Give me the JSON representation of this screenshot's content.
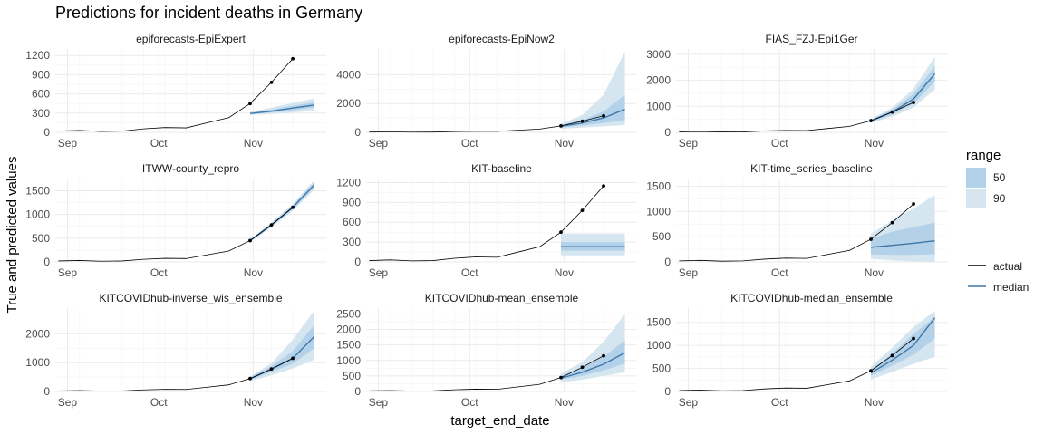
{
  "title": "Predictions for incident deaths in Germany",
  "xlabel": "target_end_date",
  "ylabel": "True and predicted values",
  "legend": {
    "range_title": "range",
    "range_items": [
      "50",
      "90"
    ],
    "line_items": [
      "actual",
      "median"
    ]
  },
  "colors": {
    "actual": "#000000",
    "median": "#3f77a8",
    "band50": "#b3d1e8",
    "band90": "#d6e6f1",
    "grid": "#ebebeb"
  },
  "chart_data": {
    "type": "line",
    "x_dates": [
      "2020-09-05",
      "2020-09-12",
      "2020-09-19",
      "2020-09-26",
      "2020-10-03",
      "2020-10-10",
      "2020-10-17",
      "2020-10-24",
      "2020-10-31",
      "2020-11-07",
      "2020-11-14"
    ],
    "x_tick_labels": [
      "Sep",
      "Oct",
      "Nov"
    ],
    "actual": [
      20,
      30,
      15,
      20,
      55,
      75,
      70,
      150,
      230,
      450,
      780,
      1150
    ],
    "actual_dates": [
      "2020-08-29",
      "2020-09-05",
      "2020-09-12",
      "2020-09-19",
      "2020-09-26",
      "2020-10-03",
      "2020-10-10",
      "2020-10-17",
      "2020-10-24",
      "2020-10-31",
      "2020-11-07",
      "2020-11-14"
    ],
    "forecast_dates": [
      "2020-10-31",
      "2020-11-07",
      "2020-11-14",
      "2020-11-21"
    ],
    "panels": [
      {
        "name": "epiforecasts-EpiExpert",
        "yticks": [
          0,
          300,
          600,
          900,
          1200
        ],
        "ylim": [
          0,
          1260
        ],
        "median": [
          295,
          330,
          380,
          425
        ],
        "q50": [
          [
            285,
            305
          ],
          [
            310,
            355
          ],
          [
            345,
            415
          ],
          [
            385,
            470
          ]
        ],
        "q90": [
          [
            270,
            320
          ],
          [
            285,
            385
          ],
          [
            310,
            460
          ],
          [
            335,
            530
          ]
        ]
      },
      {
        "name": "epiforecasts-EpiNow2",
        "yticks": [
          0,
          2000,
          4000
        ],
        "ylim": [
          0,
          5600
        ],
        "median": [
          420,
          650,
          1000,
          1600
        ],
        "q50": [
          [
            330,
            500
          ],
          [
            470,
            850
          ],
          [
            650,
            1450
          ],
          [
            850,
            2600
          ]
        ],
        "q90": [
          [
            250,
            600
          ],
          [
            330,
            1200
          ],
          [
            420,
            2600
          ],
          [
            500,
            5600
          ]
        ]
      },
      {
        "name": "FIAS_FZJ-Epi1Ger",
        "yticks": [
          0,
          1000,
          2000,
          3000
        ],
        "ylim": [
          0,
          3100
        ],
        "median": [
          440,
          780,
          1280,
          2250
        ],
        "q50": [
          [
            400,
            480
          ],
          [
            680,
            870
          ],
          [
            1100,
            1480
          ],
          [
            1950,
            2550
          ]
        ],
        "q90": [
          [
            360,
            520
          ],
          [
            600,
            950
          ],
          [
            950,
            1680
          ],
          [
            1650,
            2900
          ]
        ]
      },
      {
        "name": "ITWW-county_repro",
        "yticks": [
          0,
          500,
          1000,
          1500
        ],
        "ylim": [
          0,
          1700
        ],
        "median": [
          450,
          780,
          1150,
          1620
        ],
        "q50": [
          [
            430,
            470
          ],
          [
            750,
            810
          ],
          [
            1110,
            1190
          ],
          [
            1560,
            1680
          ]
        ],
        "q90": [
          [
            415,
            485
          ],
          [
            730,
            830
          ],
          [
            1080,
            1220
          ],
          [
            1520,
            1720
          ]
        ]
      },
      {
        "name": "KIT-baseline",
        "yticks": [
          0,
          300,
          600,
          900,
          1200
        ],
        "ylim": [
          0,
          1220
        ],
        "median": [
          230,
          230,
          230,
          230
        ],
        "q50": [
          [
            170,
            300
          ],
          [
            170,
            300
          ],
          [
            170,
            300
          ],
          [
            170,
            300
          ]
        ],
        "q90": [
          [
            100,
            430
          ],
          [
            100,
            430
          ],
          [
            100,
            430
          ],
          [
            100,
            430
          ]
        ]
      },
      {
        "name": "KIT-time_series_baseline",
        "yticks": [
          0,
          500,
          1000,
          1500
        ],
        "ylim": [
          0,
          1600
        ],
        "median": [
          290,
          330,
          370,
          420
        ],
        "q50": [
          [
            150,
            460
          ],
          [
            140,
            600
          ],
          [
            140,
            690
          ],
          [
            150,
            780
          ]
        ],
        "q90": [
          [
            60,
            560
          ],
          [
            30,
            820
          ],
          [
            10,
            1060
          ],
          [
            0,
            1330
          ]
        ]
      },
      {
        "name": "KITCOVIDhub-inverse_wis_ensemble",
        "yticks": [
          0,
          1000,
          2000
        ],
        "ylim": [
          0,
          2800
        ],
        "median": [
          440,
          780,
          1150,
          1900
        ],
        "q50": [
          [
            400,
            490
          ],
          [
            680,
            880
          ],
          [
            960,
            1400
          ],
          [
            1500,
            2300
          ]
        ],
        "q90": [
          [
            360,
            520
          ],
          [
            560,
            980
          ],
          [
            800,
            1800
          ],
          [
            1100,
            2800
          ]
        ]
      },
      {
        "name": "KITCOVIDhub-mean_ensemble",
        "yticks": [
          0,
          500,
          1000,
          1500,
          2000,
          2500
        ],
        "ylim": [
          0,
          2600
        ],
        "median": [
          430,
          620,
          880,
          1250
        ],
        "q50": [
          [
            380,
            500
          ],
          [
            500,
            760
          ],
          [
            680,
            1120
          ],
          [
            900,
            1650
          ]
        ],
        "q90": [
          [
            300,
            580
          ],
          [
            380,
            950
          ],
          [
            500,
            1600
          ],
          [
            620,
            2500
          ]
        ]
      },
      {
        "name": "KITCOVIDhub-median_ensemble",
        "yticks": [
          0,
          500,
          1000,
          1500
        ],
        "ylim": [
          0,
          1750
        ],
        "median": [
          400,
          680,
          1000,
          1600
        ],
        "q50": [
          [
            340,
            480
          ],
          [
            560,
            820
          ],
          [
            800,
            1250
          ],
          [
            1150,
            1620
          ]
        ],
        "q90": [
          [
            260,
            540
          ],
          [
            420,
            950
          ],
          [
            600,
            1400
          ],
          [
            750,
            1750
          ]
        ]
      }
    ]
  }
}
